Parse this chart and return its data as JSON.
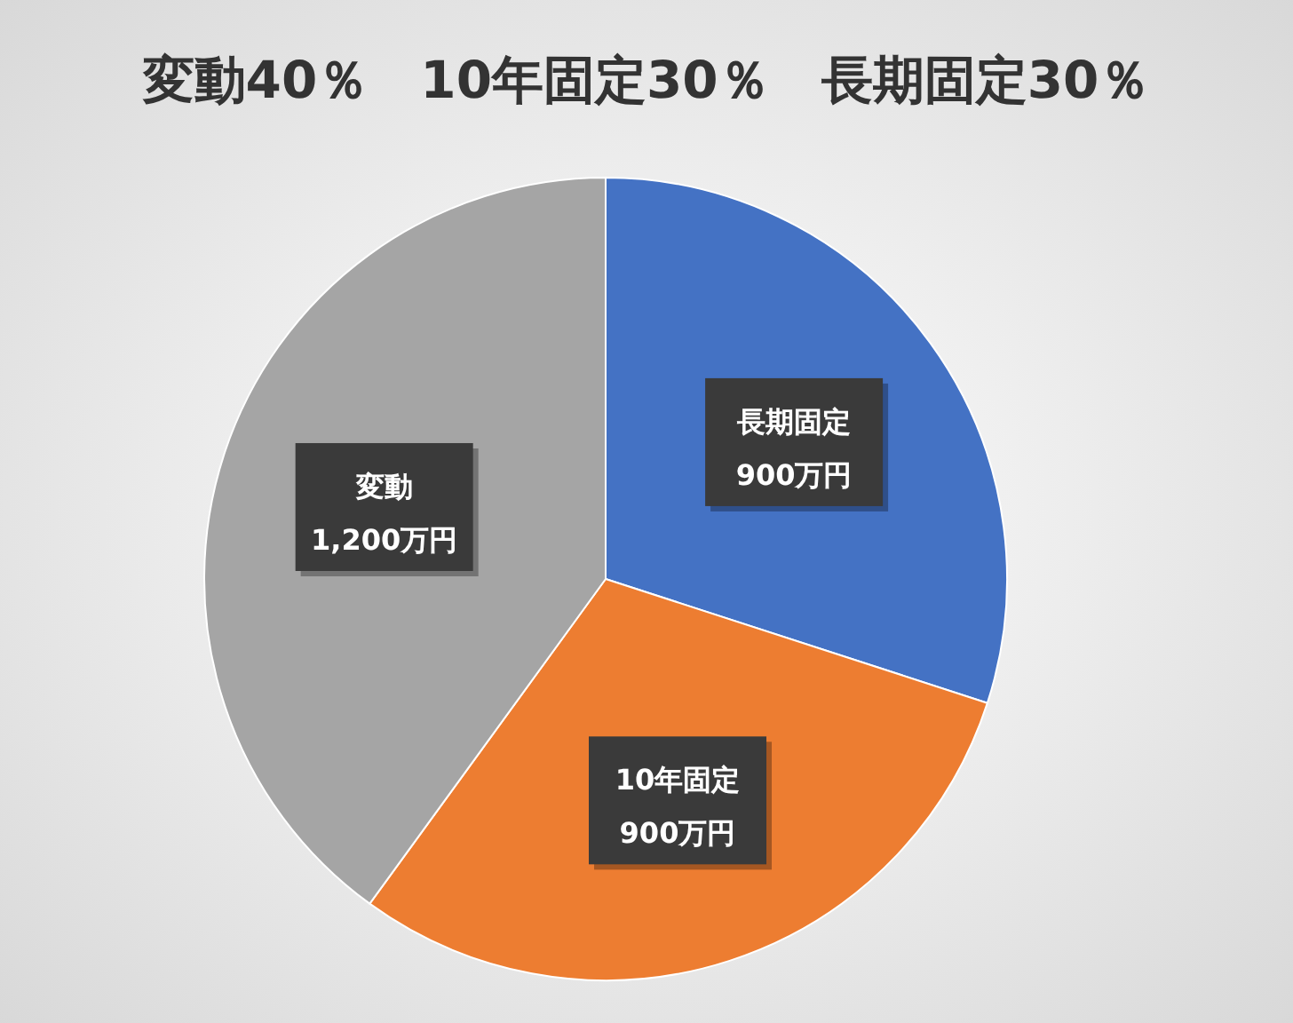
{
  "chart_data": {
    "type": "pie",
    "title": "変動40％　10年固定30％　長期固定30％",
    "categories": [
      "長期固定",
      "10年固定",
      "変動"
    ],
    "values": [
      900,
      900,
      1200
    ],
    "value_labels": [
      "900万円",
      "900万円",
      "1,200万円"
    ],
    "colors": [
      "#4472c4",
      "#ed7d31",
      "#a5a5a5"
    ]
  }
}
